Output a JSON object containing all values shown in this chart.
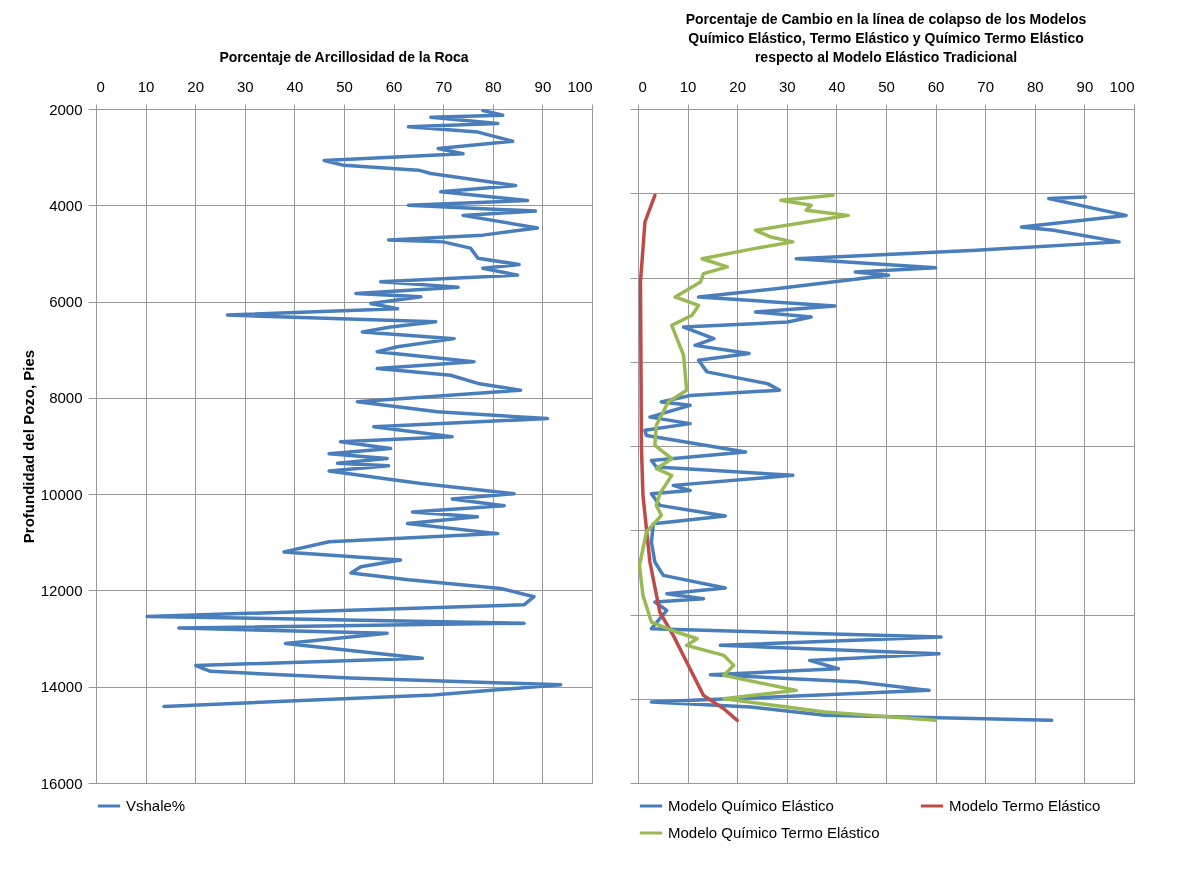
{
  "chart_data": [
    {
      "type": "line",
      "title": "Porcentaje de Arcillosidad  de la Roca",
      "ylabel": "Profundidad del Pozo, Pies",
      "xlim": [
        0,
        100
      ],
      "xticks": [
        0,
        10,
        20,
        30,
        40,
        50,
        60,
        70,
        80,
        90,
        100
      ],
      "ylim": [
        16000,
        2000
      ],
      "yticks": [
        2000,
        4000,
        6000,
        8000,
        10000,
        12000,
        14000,
        16000
      ],
      "grid": true,
      "legend": "bottom",
      "series": [
        {
          "name": "Vshale%",
          "color": "#4a7ebb",
          "x": [
            78,
            82,
            67.5,
            81,
            63,
            77,
            84,
            69,
            74,
            46,
            50,
            65,
            67.5,
            84.6,
            69.5,
            87,
            63,
            88.6,
            74,
            89,
            78,
            59,
            70,
            75.5,
            77,
            85.3,
            78,
            85,
            57.4,
            73,
            52.4,
            65.5,
            55.4,
            60.8,
            26.5,
            68.5,
            59.4,
            53.7,
            72.2,
            60.8,
            56.7,
            76.2,
            56.7,
            71.5,
            77,
            85.6,
            52.7,
            68.8,
            91,
            56,
            71.8,
            49.3,
            59.4,
            47,
            58.7,
            48.7,
            59,
            47,
            58,
            65.5,
            84.3,
            71.8,
            82.3,
            63.8,
            76.9,
            62.8,
            81,
            47,
            37.9,
            61.4,
            53.4,
            51.4,
            63,
            81.6,
            88.3,
            86.3,
            10.3,
            86.3,
            16.7,
            58.7,
            38.2,
            65.8,
            20.1,
            23.1,
            51.3,
            93.7,
            68,
            13.7
          ],
          "values": [
            2030,
            2130,
            2170,
            2300,
            2370,
            2480,
            2670,
            2820,
            2930,
            3070,
            3170,
            3270,
            3340,
            3590,
            3720,
            3900,
            4000,
            4120,
            4210,
            4470,
            4620,
            4720,
            4760,
            4890,
            5100,
            5230,
            5310,
            5450,
            5590,
            5700,
            5830,
            5900,
            6040,
            6150,
            6280,
            6420,
            6530,
            6630,
            6770,
            6940,
            7040,
            7250,
            7390,
            7530,
            7700,
            7840,
            8080,
            8290,
            8430,
            8600,
            8810,
            8910,
            9050,
            9160,
            9260,
            9360,
            9410,
            9520,
            9675,
            9780,
            9990,
            10100,
            10240,
            10370,
            10470,
            10610,
            10820,
            10990,
            11200,
            11370,
            11510,
            11640,
            11780,
            11960,
            12130,
            12300,
            12540,
            12680,
            12780,
            12890,
            13100,
            13410,
            13560,
            13680,
            13820,
            13960,
            14170,
            14410
          ]
        }
      ]
    },
    {
      "type": "line",
      "title": "Porcentaje de  Cambio en la línea de colapso  de los Modelos\nQuímico Elástico,   Termo Elástico  y Químico Termo Elástico\nrespecto al Modelo Elástico Tradicional",
      "xlim": [
        0,
        100
      ],
      "xticks": [
        0,
        10,
        20,
        30,
        40,
        50,
        60,
        70,
        80,
        90,
        100
      ],
      "ylim": [
        16000,
        2000
      ],
      "yticks": [
        {
          "value": 2000,
          "label": null
        },
        {
          "value": 3750,
          "label": null
        },
        {
          "value": 5500,
          "label": null
        },
        {
          "value": 7250,
          "label": null
        },
        {
          "value": 9000,
          "label": null
        },
        {
          "value": 10750,
          "label": null
        },
        {
          "value": 12500,
          "label": null
        },
        {
          "value": 14250,
          "label": null
        },
        {
          "value": 16000,
          "label": null
        }
      ],
      "tick_labels": "x",
      "grid": true,
      "legend": "bottom",
      "series": [
        {
          "name": "Modelo Químico  Elástico",
          "color": "#4a7ebb",
          "x": [
            90.2,
            82.8,
            98.4,
            77.3,
            83.8,
            97,
            68.2,
            31.9,
            60,
            43.8,
            50.5,
            28.2,
            12.2,
            39.7,
            23.7,
            34.9,
            30.2,
            9.2,
            15.3,
            11.5,
            22.4,
            12.2,
            13.9,
            26.1,
            28.5,
            10.5,
            4.7,
            10.5,
            2.4,
            10.5,
            1.4,
            1.7,
            21.7,
            2.7,
            3.7,
            31.2,
            7.1,
            10.5,
            2.7,
            4.4,
            17.6,
            3.1,
            2.7,
            3.4,
            5.1,
            17.6,
            5.8,
            13.2,
            3.4,
            5.8,
            2.7,
            61.1,
            16.6,
            60.7,
            34.6,
            40.4,
            14.6,
            44.4,
            58.7,
            2.7,
            22.7,
            37.7,
            83.4
          ],
          "values": [
            3830,
            3860,
            4210,
            4450,
            4520,
            4760,
            4935,
            5110,
            5300,
            5385,
            5455,
            5730,
            5905,
            6090,
            6215,
            6320,
            6425,
            6530,
            6770,
            6910,
            7080,
            7220,
            7460,
            7705,
            7840,
            7950,
            8085,
            8155,
            8400,
            8535,
            8675,
            8780,
            9125,
            9300,
            9437,
            9610,
            9818,
            9922,
            9990,
            10233,
            10455,
            10614,
            10995,
            11410,
            11687,
            11950,
            12068,
            12172,
            12241,
            12414,
            12795,
            12968,
            13141,
            13314,
            13453,
            13626,
            13750,
            13903,
            14076,
            14318,
            14422,
            14595,
            14699
          ]
        },
        {
          "name": "Modelo Termo  Elástico",
          "color": "#be4b48",
          "x": [
            3.4,
            1.4,
            0.5,
            0.7,
            1,
            2.4,
            4.4,
            7.1,
            9.8,
            13.2,
            17.3,
            20
          ],
          "values": [
            3793,
            4347,
            5593,
            9055,
            10025,
            11410,
            12449,
            12934,
            13487,
            14180,
            14457,
            14699
          ]
        },
        {
          "name": "Modelo Químico  Termo Elástico",
          "color": "#98b954",
          "x": [
            39.3,
            28.8,
            34.9,
            33.9,
            42.4,
            36.3,
            23.7,
            26.8,
            31.2,
            23.4,
            12.9,
            18,
            13.2,
            12.6,
            7.5,
            12.2,
            10.9,
            6.8,
            9.2,
            9.8,
            6.1,
            3.7,
            3.4,
            6.8,
            3.7,
            6.8,
            4.4,
            3.7,
            4.7,
            1.7,
            0.3,
            1,
            2.7,
            7.8,
            11.9,
            9.8,
            17.3,
            19.3,
            17.3,
            31.9,
            17.3,
            37.7,
            60
          ],
          "values": [
            3793,
            3897,
            4000,
            4105,
            4210,
            4312,
            4520,
            4660,
            4760,
            4900,
            5110,
            5280,
            5420,
            5593,
            5905,
            6080,
            6285,
            6493,
            7117,
            7844,
            8085,
            8570,
            8986,
            9263,
            9472,
            9610,
            9990,
            10233,
            10440,
            10787,
            11480,
            12103,
            12657,
            12864,
            13003,
            13141,
            13349,
            13557,
            13764,
            14076,
            14249,
            14526,
            14699
          ]
        }
      ]
    }
  ]
}
